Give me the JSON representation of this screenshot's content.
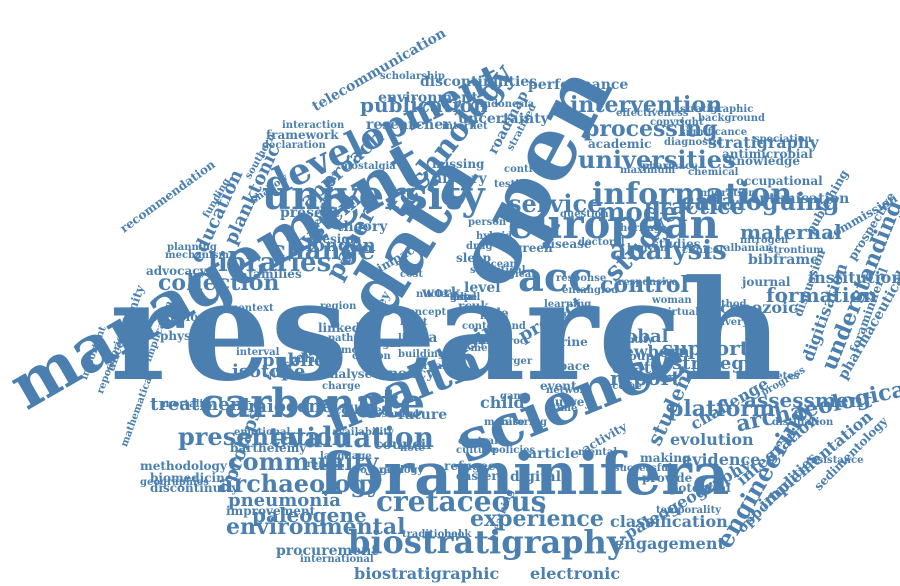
{
  "color": "#4a7fb0",
  "words": [
    "research",
    "management",
    "foraminifera",
    "science",
    "health",
    "data",
    "open",
    "carbonate",
    "university",
    "european",
    "development",
    "biostratigraphy",
    "cretaceous",
    "acc",
    "information",
    "universities",
    "technology",
    "service",
    "model",
    "cataloguing",
    "analysis",
    "libraries",
    "change",
    "evaluation",
    "presentation",
    "community",
    "archaeology",
    "environmental",
    "experience",
    "study",
    "engineering",
    "student",
    "practice",
    "system",
    "collection",
    "processing",
    "intervention",
    "publication",
    "control",
    "maternal",
    "understanding",
    "assessment",
    "archaeological",
    "platform",
    "support",
    "strategy",
    "report",
    "paleogene",
    "miocene",
    "pneumonia",
    "treatment",
    "formation",
    "stratigraphy",
    "digitisation",
    "integration",
    "implementation",
    "occupational",
    "knowledge",
    "evidence",
    "evolution",
    "challenge",
    "engagement",
    "classification",
    "electronic",
    "paleogeography",
    "biostratigraphic",
    "procurement",
    "international",
    "improvement",
    "prolapse",
    "london",
    "basin",
    "paper",
    "approach",
    "education",
    "planktonic",
    "researcher",
    "environment",
    "discontinuities",
    "uncertainty",
    "performance",
    "telecommunication",
    "recommendation",
    "cenozoic",
    "institutional",
    "pharmaceutical",
    "sedimentology",
    "opportunities",
    "methodology",
    "biomedicine",
    "discontinuity",
    "foraminiferal",
    "bibframe",
    "optimisation",
    "diagnostic",
    "significance",
    "copyright",
    "effectiveness",
    "antimicrobial",
    "migration",
    "digital",
    "eastern",
    "article",
    "activity",
    "council",
    "future",
    "child",
    "survey",
    "college",
    "resource",
    "public",
    "isotope",
    "western",
    "physical",
    "collision",
    "unconformity",
    "framework",
    "declaration",
    "interaction",
    "roadmap",
    "history",
    "missing",
    "theory",
    "design",
    "quality",
    "impact",
    "work",
    "level",
    "global",
    "newborn",
    "death",
    "group",
    "project",
    "current",
    "space",
    "event",
    "tibet",
    "rcuk",
    "role",
    "year",
    "proc",
    "larger",
    "policy",
    "area",
    "most",
    "linked",
    "turkey",
    "present",
    "shallow",
    "families",
    "advocacy",
    "mechanism",
    "planning",
    "geographies",
    "interval",
    "analyse",
    "charge",
    "number",
    "mortality",
    "emotional",
    "barthélemy",
    "trends",
    "availability",
    "language",
    "coverage",
    "geology",
    "refugee",
    "central",
    "mental",
    "kenyon",
    "studies",
    "disease",
    "green",
    "albanian",
    "strontium",
    "nitrogen",
    "publishing",
    "commission",
    "prospective",
    "discussion",
    "diabetes",
    "progress",
    "vaccine",
    "making",
    "provide",
    "potential",
    "successful",
    "temporality",
    "distillation",
    "resistance",
    "scholarship",
    "indonesia",
    "stratigraphic",
    "background",
    "speciation",
    "academic",
    "doctoral",
    "maximum",
    "pharmacy",
    "heritage",
    "chemical",
    "clinical",
    "marine",
    "internet",
    "pelagonian",
    "nostalgia",
    "funding",
    "southern",
    "important",
    "repositories",
    "mathematical",
    "implication",
    "biological",
    "ocean",
    "sleep",
    "drug",
    "hybrid",
    "record",
    "person",
    "policies",
    "culture",
    "nuclear",
    "concept",
    "book",
    "traditional",
    "breathing",
    "monitoring",
    "journal",
    "method",
    "learning",
    "identity",
    "responsive",
    "entangled",
    "response",
    "context",
    "region",
    "pathway",
    "memory",
    "margin",
    "carbon",
    "urban",
    "woman",
    "virtual",
    "network",
    "delivery",
    "testing",
    "control",
    "stratified",
    "question",
    "building",
    "content",
    "element",
    "statistical",
    "fund",
    "flows",
    "cost",
    "life",
    "care",
    "game",
    "time",
    "case",
    "note",
    "small",
    "gate",
    "gene",
    "ddp"
  ]
}
